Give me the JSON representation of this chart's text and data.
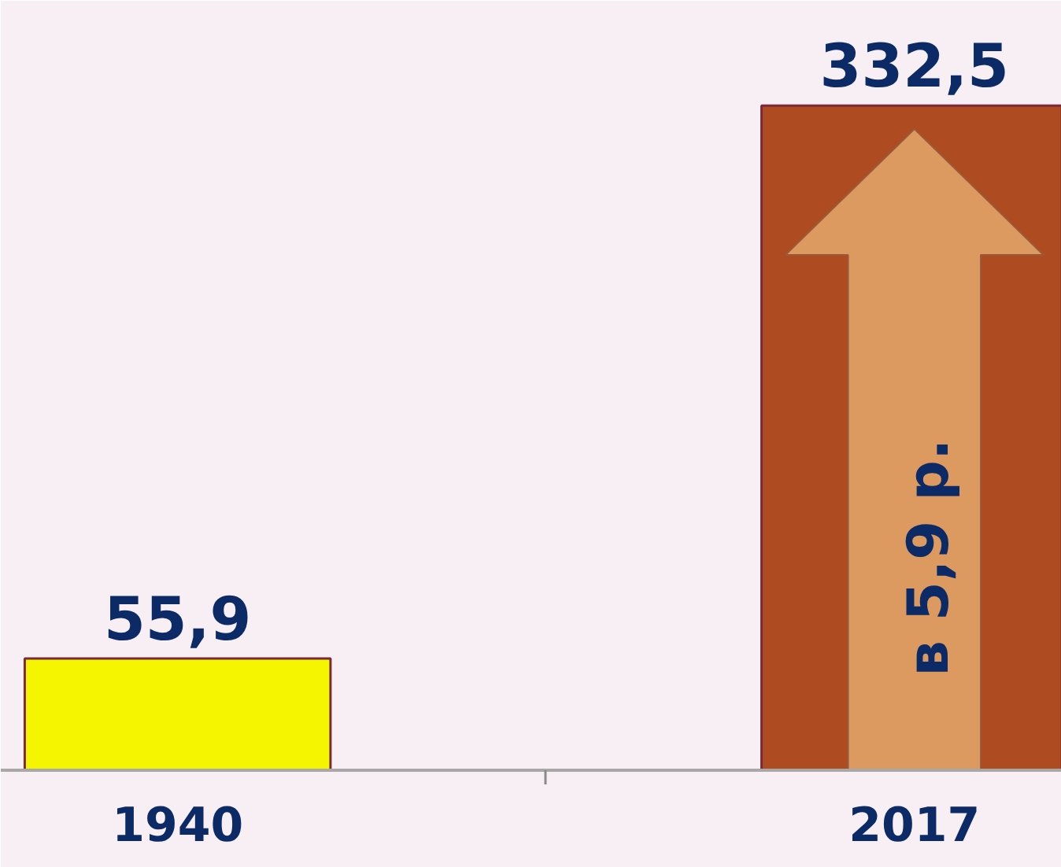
{
  "chart_data": {
    "type": "bar",
    "categories": [
      "1940",
      "2017"
    ],
    "values": [
      55.9,
      332.5
    ],
    "colors": [
      "#f5f500",
      "#ae4b21"
    ],
    "value_labels": [
      "55,9",
      "332,5"
    ],
    "ylim": [
      0,
      385
    ],
    "tick_labels": "x",
    "annotations": [
      "в 5,9 р."
    ]
  }
}
